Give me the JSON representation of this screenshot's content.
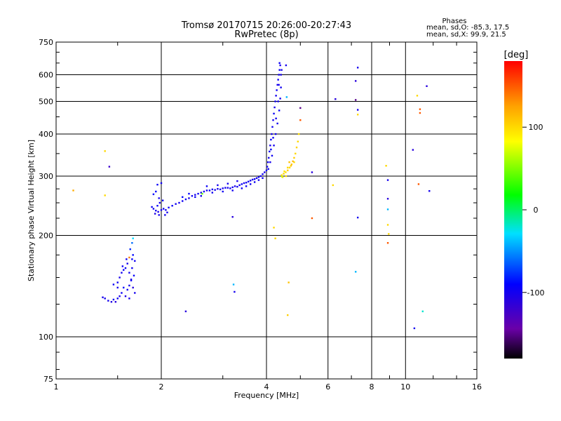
{
  "header": {
    "title_line1": "Tromsø 20170715 20:26:00-20:27:43",
    "title_line2": "RwPretec (8p)"
  },
  "stats": {
    "heading": "Phases",
    "line_o": "mean, sd,O: -85.3, 17.5",
    "line_x": "mean, sd,X:  99.9, 21.5"
  },
  "colorbar": {
    "unit": "[deg]",
    "range": [
      -180,
      180
    ],
    "ticks": [
      {
        "value": 100,
        "label": "100"
      },
      {
        "value": 0,
        "label": "0"
      },
      {
        "value": -100,
        "label": "-100"
      }
    ]
  },
  "chart_data": {
    "type": "scatter",
    "xlabel": "Frequency [MHz]",
    "ylabel": "Stationary phase Virtual Height [km]",
    "x_scale": "log",
    "y_scale": "log",
    "xlim": [
      1,
      16
    ],
    "ylim": [
      75,
      750
    ],
    "xticks": [
      {
        "value": 1,
        "label": "1"
      },
      {
        "value": 2,
        "label": "2"
      },
      {
        "value": 4,
        "label": "4"
      },
      {
        "value": 6,
        "label": "6"
      },
      {
        "value": 8,
        "label": "8"
      },
      {
        "value": 10,
        "label": "10"
      },
      {
        "value": 16,
        "label": "16"
      }
    ],
    "yticks": [
      {
        "value": 75,
        "label": "75"
      },
      {
        "value": 100,
        "label": "100"
      },
      {
        "value": 200,
        "label": "200"
      },
      {
        "value": 300,
        "label": "300"
      },
      {
        "value": 400,
        "label": "400"
      },
      {
        "value": 500,
        "label": "500"
      },
      {
        "value": 600,
        "label": "600"
      },
      {
        "value": 750,
        "label": "750"
      }
    ],
    "major_grid_x": [
      2,
      4,
      6,
      8,
      10
    ],
    "major_grid_y": [
      100,
      200,
      300,
      400,
      500,
      600
    ],
    "minor_ticks_x": [
      1.5,
      3,
      5,
      7,
      9,
      12,
      14
    ],
    "minor_ticks_y": [
      80,
      90,
      125,
      150,
      175,
      225,
      250,
      275,
      350,
      450,
      550,
      650,
      700
    ],
    "points": [
      [
        1.41,
        128,
        -100
      ],
      [
        1.44,
        127,
        -105
      ],
      [
        1.46,
        129,
        -98
      ],
      [
        1.48,
        127,
        -110
      ],
      [
        1.5,
        130,
        -96
      ],
      [
        1.52,
        132,
        -102
      ],
      [
        1.54,
        135,
        -95
      ],
      [
        1.56,
        140,
        -90
      ],
      [
        1.58,
        132,
        -104
      ],
      [
        1.6,
        138,
        -97
      ],
      [
        1.62,
        142,
        -100
      ],
      [
        1.64,
        147,
        -95
      ],
      [
        1.66,
        140,
        -108
      ],
      [
        1.67,
        152,
        -93
      ],
      [
        1.68,
        135,
        -100
      ],
      [
        1.5,
        145,
        -97
      ],
      [
        1.52,
        150,
        -102
      ],
      [
        1.54,
        155,
        -99
      ],
      [
        1.56,
        158,
        -95
      ],
      [
        1.58,
        160,
        -92
      ],
      [
        1.6,
        165,
        -100
      ],
      [
        1.62,
        155,
        -96
      ],
      [
        1.64,
        148,
        -100
      ],
      [
        1.65,
        170,
        -93
      ],
      [
        1.66,
        175,
        -88
      ],
      [
        1.68,
        168,
        -98
      ],
      [
        1.55,
        162,
        -95
      ],
      [
        1.59,
        170,
        -100
      ],
      [
        1.63,
        182,
        -80
      ],
      [
        1.65,
        190,
        -60
      ],
      [
        1.66,
        196,
        -30
      ],
      [
        1.38,
        130,
        -100
      ],
      [
        1.36,
        131,
        -102
      ],
      [
        1.62,
        172,
        140
      ],
      [
        1.46,
        143,
        -95
      ],
      [
        1.5,
        140,
        -100
      ],
      [
        1.65,
        160,
        -97
      ],
      [
        1.62,
        130,
        -102
      ],
      [
        1.9,
        240,
        -100
      ],
      [
        1.93,
        237,
        -98
      ],
      [
        1.96,
        235,
        -103
      ],
      [
        2.0,
        238,
        -100
      ],
      [
        2.03,
        240,
        -96
      ],
      [
        2.06,
        238,
        -102
      ],
      [
        2.1,
        242,
        -98
      ],
      [
        1.95,
        245,
        -95
      ],
      [
        1.98,
        250,
        -100
      ],
      [
        2.02,
        254,
        -97
      ],
      [
        1.92,
        232,
        -104
      ],
      [
        1.97,
        230,
        -100
      ],
      [
        2.05,
        230,
        -98
      ],
      [
        2.08,
        234,
        -100
      ],
      [
        1.88,
        243,
        -95
      ],
      [
        1.9,
        265,
        -90
      ],
      [
        1.93,
        270,
        -92
      ],
      [
        1.97,
        258,
        -100
      ],
      [
        1.95,
        283,
        -95
      ],
      [
        2.0,
        286,
        -97
      ],
      [
        2.15,
        245,
        -95
      ],
      [
        2.2,
        248,
        -98
      ],
      [
        2.25,
        250,
        -100
      ],
      [
        2.3,
        253,
        -97
      ],
      [
        2.35,
        256,
        -95
      ],
      [
        2.4,
        258,
        -100
      ],
      [
        2.45,
        262,
        -98
      ],
      [
        2.5,
        264,
        -100
      ],
      [
        2.55,
        266,
        -96
      ],
      [
        2.6,
        268,
        -102
      ],
      [
        2.65,
        270,
        -98
      ],
      [
        2.7,
        272,
        -100
      ],
      [
        2.75,
        272,
        -96
      ],
      [
        2.8,
        274,
        -100
      ],
      [
        2.85,
        273,
        -98
      ],
      [
        2.9,
        275,
        -102
      ],
      [
        2.95,
        274,
        -97
      ],
      [
        3.0,
        276,
        -100
      ],
      [
        3.05,
        277,
        -98
      ],
      [
        3.1,
        277,
        -100
      ],
      [
        3.15,
        276,
        -96
      ],
      [
        3.2,
        278,
        -100
      ],
      [
        3.25,
        280,
        -102
      ],
      [
        3.3,
        279,
        -98
      ],
      [
        3.35,
        282,
        -100
      ],
      [
        3.4,
        284,
        -95
      ],
      [
        3.45,
        286,
        -100
      ],
      [
        3.5,
        287,
        -98
      ],
      [
        3.55,
        289,
        -100
      ],
      [
        3.6,
        291,
        -97
      ],
      [
        3.65,
        293,
        -100
      ],
      [
        3.7,
        294,
        -98
      ],
      [
        3.75,
        296,
        -100
      ],
      [
        3.8,
        298,
        -96
      ],
      [
        3.85,
        300,
        -100
      ],
      [
        3.9,
        304,
        -98
      ],
      [
        3.95,
        308,
        -100
      ],
      [
        4.0,
        312,
        -97
      ],
      [
        2.3,
        260,
        -90
      ],
      [
        2.4,
        266,
        -92
      ],
      [
        2.5,
        260,
        -95
      ],
      [
        2.6,
        262,
        -100
      ],
      [
        2.62,
        266,
        40
      ],
      [
        2.7,
        280,
        -95
      ],
      [
        2.8,
        268,
        -98
      ],
      [
        2.9,
        282,
        -100
      ],
      [
        3.0,
        270,
        -96
      ],
      [
        3.1,
        285,
        -100
      ],
      [
        3.2,
        272,
        -98
      ],
      [
        3.3,
        290,
        -100
      ],
      [
        3.4,
        276,
        -97
      ],
      [
        3.5,
        280,
        -95
      ],
      [
        3.6,
        284,
        -100
      ],
      [
        3.7,
        288,
        -96
      ],
      [
        3.8,
        292,
        -100
      ],
      [
        3.9,
        296,
        -98
      ],
      [
        4.02,
        320,
        -100
      ],
      [
        4.04,
        330,
        -96
      ],
      [
        4.06,
        340,
        -100
      ],
      [
        4.08,
        355,
        -98
      ],
      [
        4.1,
        370,
        -100
      ],
      [
        4.12,
        385,
        -95
      ],
      [
        4.14,
        400,
        -100
      ],
      [
        4.16,
        420,
        -98
      ],
      [
        4.18,
        440,
        -100
      ],
      [
        4.2,
        460,
        -96
      ],
      [
        4.22,
        480,
        -100
      ],
      [
        4.24,
        500,
        -98
      ],
      [
        4.26,
        520,
        -100
      ],
      [
        4.28,
        540,
        -95
      ],
      [
        4.3,
        560,
        -100
      ],
      [
        4.32,
        580,
        -98
      ],
      [
        4.34,
        600,
        -100
      ],
      [
        4.36,
        620,
        -96
      ],
      [
        4.38,
        640,
        -100
      ],
      [
        4.05,
        315,
        -95
      ],
      [
        4.1,
        330,
        -100
      ],
      [
        4.15,
        345,
        -97
      ],
      [
        4.2,
        370,
        -100
      ],
      [
        4.25,
        400,
        -98
      ],
      [
        4.3,
        430,
        -100
      ],
      [
        4.35,
        470,
        -95
      ],
      [
        4.38,
        510,
        -100
      ],
      [
        4.4,
        550,
        -98
      ],
      [
        4.4,
        600,
        -100
      ],
      [
        4.36,
        650,
        -96
      ],
      [
        4.42,
        620,
        -100
      ],
      [
        4.12,
        360,
        -92
      ],
      [
        4.18,
        390,
        -95
      ],
      [
        4.26,
        445,
        -100
      ],
      [
        4.32,
        500,
        -98
      ],
      [
        4.34,
        560,
        -100
      ],
      [
        4.42,
        302,
        100
      ],
      [
        4.48,
        305,
        103
      ],
      [
        4.54,
        308,
        98
      ],
      [
        4.6,
        312,
        105
      ],
      [
        4.66,
        318,
        100
      ],
      [
        4.72,
        325,
        110
      ],
      [
        4.76,
        332,
        115
      ],
      [
        4.8,
        340,
        105
      ],
      [
        4.84,
        350,
        100
      ],
      [
        4.88,
        365,
        103
      ],
      [
        4.92,
        380,
        100
      ],
      [
        4.95,
        400,
        98
      ],
      [
        4.5,
        310,
        95
      ],
      [
        4.6,
        318,
        100
      ],
      [
        4.7,
        322,
        108
      ],
      [
        4.55,
        300,
        100
      ],
      [
        4.45,
        298,
        95
      ],
      [
        4.65,
        330,
        112
      ],
      [
        4.8,
        330,
        100
      ],
      [
        1.12,
        272,
        120
      ],
      [
        1.38,
        356,
        100
      ],
      [
        1.38,
        263,
        100
      ],
      [
        1.42,
        320,
        -120
      ],
      [
        4.2,
        211,
        100
      ],
      [
        4.24,
        196,
        100
      ],
      [
        4.43,
        299,
        70
      ],
      [
        4.6,
        116,
        105
      ],
      [
        4.63,
        145,
        110
      ],
      [
        4.57,
        515,
        -40
      ],
      [
        4.55,
        640,
        -100
      ],
      [
        5.0,
        478,
        -150
      ],
      [
        5.0,
        440,
        150
      ],
      [
        5.4,
        225,
        150
      ],
      [
        5.4,
        308,
        -110
      ],
      [
        6.2,
        282,
        100
      ],
      [
        6.3,
        508,
        -110
      ],
      [
        7.2,
        575,
        -110
      ],
      [
        7.2,
        505,
        -150
      ],
      [
        7.3,
        472,
        -100
      ],
      [
        7.3,
        457,
        100
      ],
      [
        7.3,
        630,
        -100
      ],
      [
        7.3,
        226,
        -100
      ],
      [
        7.2,
        156,
        -40
      ],
      [
        3.2,
        227,
        -110
      ],
      [
        3.22,
        143,
        -40
      ],
      [
        3.24,
        136,
        -100
      ],
      [
        2.35,
        119,
        -110
      ],
      [
        8.8,
        322,
        100
      ],
      [
        8.9,
        257,
        -110
      ],
      [
        8.9,
        239,
        -40
      ],
      [
        8.9,
        215,
        100
      ],
      [
        8.95,
        202,
        100
      ],
      [
        8.9,
        190,
        150
      ],
      [
        8.9,
        292,
        -100
      ],
      [
        10.5,
        359,
        -110
      ],
      [
        10.6,
        106,
        -100
      ],
      [
        10.8,
        520,
        100
      ],
      [
        10.9,
        284,
        150
      ],
      [
        11.0,
        474,
        150
      ],
      [
        11.0,
        462,
        150
      ],
      [
        11.2,
        119,
        -20
      ],
      [
        11.5,
        555,
        -110
      ],
      [
        11.7,
        271,
        -100
      ]
    ]
  }
}
